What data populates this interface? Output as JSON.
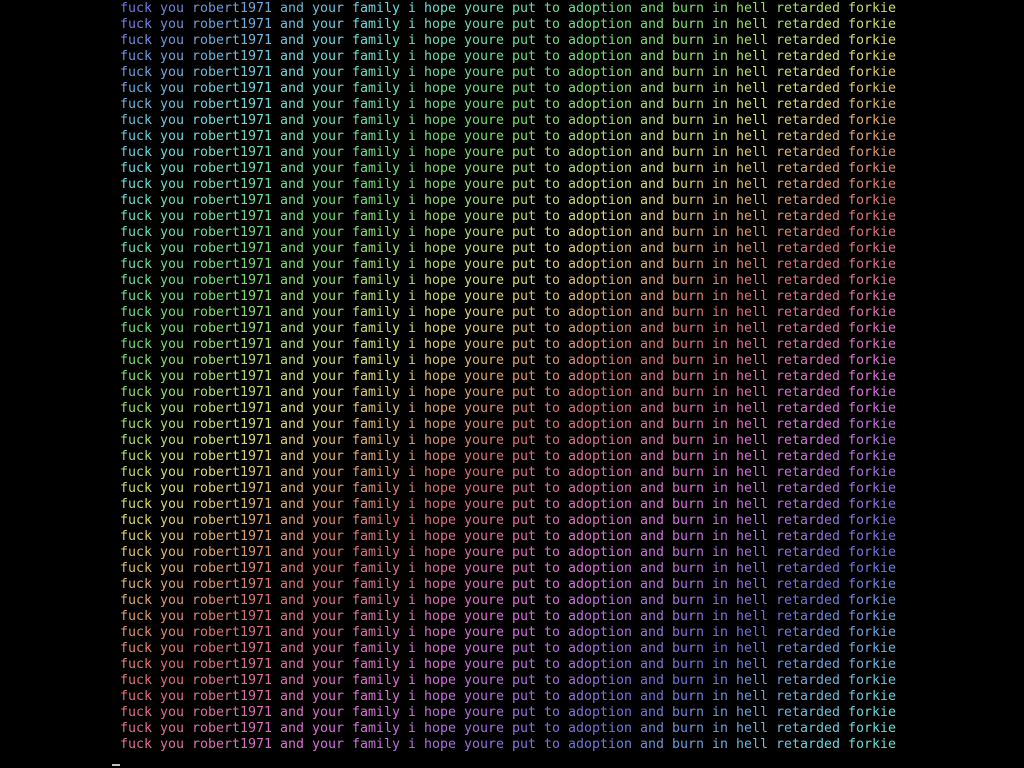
{
  "terminal": {
    "line_text": "fuck you robert1971 and your family i hope youre put to adoption and burn in hell retarded forkie",
    "line_count": 47,
    "background": "#000000",
    "color_style": "rainbow gradient",
    "gradient_hues": [
      "blue",
      "cyan",
      "green",
      "yellow",
      "red",
      "pink",
      "magenta",
      "purple"
    ]
  }
}
